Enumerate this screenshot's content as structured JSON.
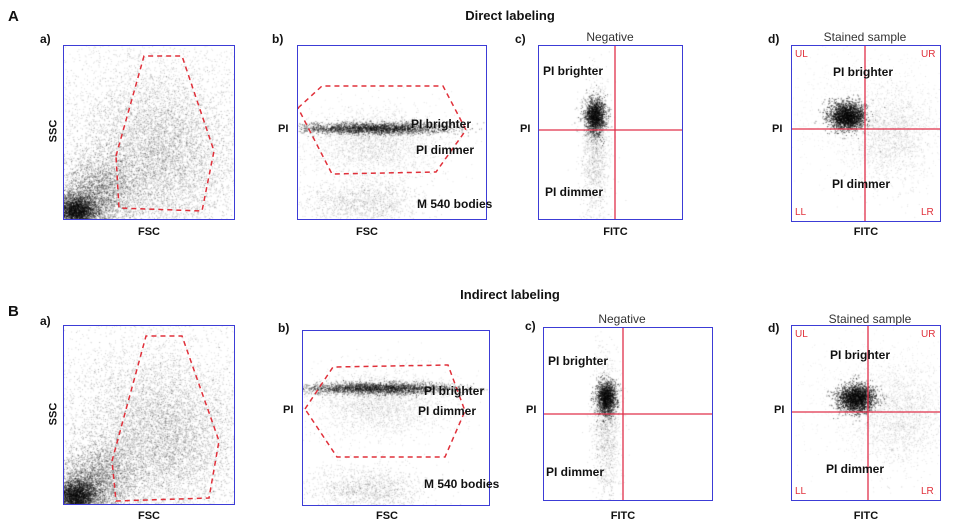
{
  "section_a": {
    "letter": "A",
    "title": "Direct labeling",
    "panel_a": {
      "letter": "a)",
      "xlabel": "FSC",
      "ylabel": "SSC"
    },
    "panel_b": {
      "letter": "b)",
      "xlabel": "FSC",
      "ylabel": "PI",
      "labels": {
        "brighter": "PI brighter",
        "dimmer": "PI dimmer",
        "bodies": "M 540 bodies"
      }
    },
    "panel_c": {
      "letter": "c)",
      "title": "Negative",
      "xlabel": "FITC",
      "ylabel": "PI",
      "labels": {
        "brighter": "PI brighter",
        "dimmer": "PI dimmer"
      }
    },
    "panel_d": {
      "letter": "d)",
      "title": "Stained sample",
      "xlabel": "FITC",
      "ylabel": "PI",
      "labels": {
        "brighter": "PI brighter",
        "dimmer": "PI dimmer"
      },
      "quadrants": {
        "ul": "UL",
        "ur": "UR",
        "ll": "LL",
        "lr": "LR"
      }
    }
  },
  "section_b": {
    "letter": "B",
    "title": "Indirect labeling",
    "panel_a": {
      "letter": "a)",
      "xlabel": "FSC",
      "ylabel": "SSC"
    },
    "panel_b": {
      "letter": "b)",
      "xlabel": "FSC",
      "ylabel": "PI",
      "labels": {
        "brighter": "PI brighter",
        "dimmer": "PI dimmer",
        "bodies": "M 540 bodies"
      }
    },
    "panel_c": {
      "letter": "c)",
      "title": "Negative",
      "xlabel": "FITC",
      "ylabel": "PI",
      "labels": {
        "brighter": "PI brighter",
        "dimmer": "PI dimmer"
      }
    },
    "panel_d": {
      "letter": "d)",
      "title": "Stained sample",
      "xlabel": "FITC",
      "ylabel": "PI",
      "labels": {
        "brighter": "PI brighter",
        "dimmer": "PI dimmer"
      },
      "quadrants": {
        "ul": "UL",
        "ur": "UR",
        "ll": "LL",
        "lr": "LR"
      }
    }
  },
  "colors": {
    "frame": "#3c3cd6",
    "gate": "#e0303a",
    "quadrant_line": "#e0304a",
    "dots": "#000000"
  }
}
